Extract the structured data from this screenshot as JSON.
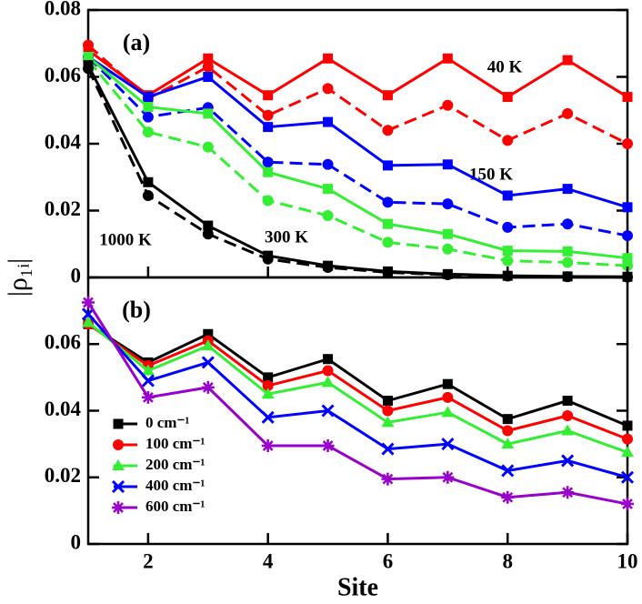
{
  "chart_data": [
    {
      "type": "line",
      "ylabel": "|ρ₁ᵢ|",
      "panel_label": "(a)",
      "x": [
        1,
        2,
        3,
        4,
        5,
        6,
        7,
        8,
        9,
        10
      ],
      "xlim": [
        1,
        10
      ],
      "ylim": [
        0,
        0.08
      ],
      "yticks": [
        0,
        0.02,
        0.04,
        0.06,
        0.08
      ],
      "annotations": [
        {
          "text": "40 K",
          "color": "#000000"
        },
        {
          "text": "150 K",
          "color": "#000000"
        },
        {
          "text": "300 K",
          "color": "#000000"
        },
        {
          "text": "1000 K",
          "color": "#000000"
        }
      ],
      "series": [
        {
          "color": "#ff0000",
          "style": "solid",
          "marker": "square",
          "values": [
            0.068,
            0.0545,
            0.0655,
            0.0545,
            0.0655,
            0.0545,
            0.0655,
            0.054,
            0.065,
            0.054
          ]
        },
        {
          "color": "#ff0000",
          "style": "dashed",
          "marker": "circle",
          "values": [
            0.0695,
            0.0535,
            0.063,
            0.0485,
            0.0565,
            0.044,
            0.0515,
            0.041,
            0.049,
            0.04
          ]
        },
        {
          "color": "#0000ff",
          "style": "solid",
          "marker": "square",
          "values": [
            0.066,
            0.054,
            0.06,
            0.045,
            0.0465,
            0.0335,
            0.0338,
            0.0245,
            0.0265,
            0.021
          ]
        },
        {
          "color": "#0000ff",
          "style": "dashed",
          "marker": "circle",
          "values": [
            0.066,
            0.048,
            0.0508,
            0.0345,
            0.0338,
            0.0225,
            0.022,
            0.015,
            0.016,
            0.0125
          ]
        },
        {
          "color": "#33ee33",
          "style": "solid",
          "marker": "square",
          "values": [
            0.066,
            0.051,
            0.049,
            0.0315,
            0.0265,
            0.016,
            0.013,
            0.008,
            0.0078,
            0.0058
          ]
        },
        {
          "color": "#33ee33",
          "style": "dashed",
          "marker": "circle",
          "values": [
            0.065,
            0.0435,
            0.039,
            0.023,
            0.0185,
            0.0105,
            0.0085,
            0.005,
            0.0045,
            0.0035
          ]
        },
        {
          "color": "#000000",
          "style": "solid",
          "marker": "square",
          "values": [
            0.0635,
            0.0285,
            0.0155,
            0.0065,
            0.0035,
            0.0018,
            0.001,
            0.0005,
            0.0003,
            0.0002
          ]
        },
        {
          "color": "#000000",
          "style": "dashed",
          "marker": "circle",
          "values": [
            0.0625,
            0.0245,
            0.013,
            0.0055,
            0.003,
            0.0015,
            0.0008,
            0.0004,
            0.0002,
            0.0001
          ]
        }
      ]
    },
    {
      "type": "line",
      "xlabel": "Site",
      "panel_label": "(b)",
      "legend": "lower left",
      "x": [
        1,
        2,
        3,
        4,
        5,
        6,
        7,
        8,
        9,
        10
      ],
      "xlim": [
        1,
        10
      ],
      "xticks": [
        2,
        4,
        6,
        8,
        10
      ],
      "ylim": [
        0,
        0.08
      ],
      "yticks": [
        0,
        0.02,
        0.04,
        0.06
      ],
      "series": [
        {
          "name": "0 cm⁻¹",
          "color": "#000000",
          "style": "solid",
          "marker": "square",
          "values": [
            0.066,
            0.0545,
            0.063,
            0.05,
            0.0555,
            0.043,
            0.048,
            0.0375,
            0.043,
            0.0355
          ]
        },
        {
          "name": "100 cm⁻¹",
          "color": "#ff0000",
          "style": "solid",
          "marker": "circle",
          "values": [
            0.066,
            0.0535,
            0.061,
            0.0475,
            0.052,
            0.04,
            0.044,
            0.034,
            0.0385,
            0.0315
          ]
        },
        {
          "name": "200 cm⁻¹",
          "color": "#33ee33",
          "style": "solid",
          "marker": "triangle",
          "values": [
            0.0665,
            0.052,
            0.0595,
            0.045,
            0.0485,
            0.0365,
            0.0395,
            0.03,
            0.034,
            0.0275
          ]
        },
        {
          "name": "400 cm⁻¹",
          "color": "#0000ff",
          "style": "solid",
          "marker": "x",
          "values": [
            0.069,
            0.049,
            0.0545,
            0.038,
            0.04,
            0.0285,
            0.03,
            0.022,
            0.025,
            0.02
          ]
        },
        {
          "name": "600 cm⁻¹",
          "color": "#9900cc",
          "style": "solid",
          "marker": "star",
          "values": [
            0.0725,
            0.044,
            0.047,
            0.0295,
            0.0295,
            0.0195,
            0.02,
            0.014,
            0.0155,
            0.012
          ]
        }
      ]
    }
  ]
}
